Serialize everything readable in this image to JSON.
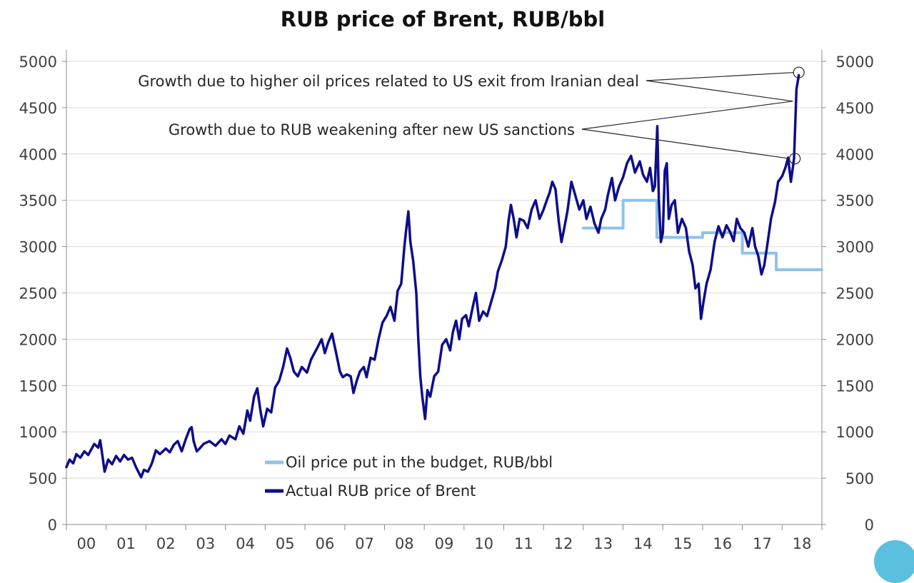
{
  "chart_data": {
    "type": "line",
    "title": "RUB price of Brent, RUB/bbl",
    "xlabel": "",
    "ylabel": "",
    "ylim": [
      0,
      5000
    ],
    "y_ticks": [
      0,
      500,
      1000,
      1500,
      2000,
      2500,
      3000,
      3500,
      4000,
      4500,
      5000
    ],
    "x_ticks": [
      "00",
      "01",
      "02",
      "03",
      "04",
      "05",
      "06",
      "07",
      "08",
      "09",
      "10",
      "11",
      "12",
      "13",
      "14",
      "15",
      "16",
      "17",
      "18"
    ],
    "grid": "horizontal",
    "legend_position": "bottom-center",
    "series": [
      {
        "name": "Oil price put in the budget, RUB/bbl",
        "color": "#8ec2ea",
        "step": true,
        "points": [
          [
            2013.0,
            3200
          ],
          [
            2014.0,
            3200
          ],
          [
            2014.0,
            3500
          ],
          [
            2014.85,
            3500
          ],
          [
            2014.85,
            3100
          ],
          [
            2016.0,
            3100
          ],
          [
            2016.0,
            3150
          ],
          [
            2017.0,
            3150
          ],
          [
            2017.0,
            2930
          ],
          [
            2017.85,
            2930
          ],
          [
            2017.85,
            2750
          ],
          [
            2019.0,
            2750
          ]
        ]
      },
      {
        "name": "Actual RUB price of Brent",
        "color": "#0d0d8c",
        "points": [
          [
            2000.0,
            620
          ],
          [
            2000.08,
            700
          ],
          [
            2000.17,
            660
          ],
          [
            2000.25,
            760
          ],
          [
            2000.35,
            720
          ],
          [
            2000.45,
            790
          ],
          [
            2000.55,
            750
          ],
          [
            2000.7,
            870
          ],
          [
            2000.8,
            830
          ],
          [
            2000.85,
            910
          ],
          [
            2000.92,
            700
          ],
          [
            2000.96,
            570
          ],
          [
            2001.05,
            700
          ],
          [
            2001.15,
            650
          ],
          [
            2001.25,
            740
          ],
          [
            2001.35,
            680
          ],
          [
            2001.45,
            750
          ],
          [
            2001.55,
            700
          ],
          [
            2001.65,
            720
          ],
          [
            2001.75,
            620
          ],
          [
            2001.82,
            560
          ],
          [
            2001.88,
            510
          ],
          [
            2001.95,
            590
          ],
          [
            2002.05,
            570
          ],
          [
            2002.15,
            660
          ],
          [
            2002.25,
            800
          ],
          [
            2002.35,
            760
          ],
          [
            2002.5,
            820
          ],
          [
            2002.6,
            780
          ],
          [
            2002.7,
            860
          ],
          [
            2002.8,
            900
          ],
          [
            2002.9,
            790
          ],
          [
            2003.0,
            920
          ],
          [
            2003.1,
            1030
          ],
          [
            2003.15,
            1050
          ],
          [
            2003.2,
            900
          ],
          [
            2003.28,
            790
          ],
          [
            2003.35,
            820
          ],
          [
            2003.45,
            870
          ],
          [
            2003.6,
            900
          ],
          [
            2003.75,
            850
          ],
          [
            2003.9,
            920
          ],
          [
            2004.0,
            870
          ],
          [
            2004.1,
            960
          ],
          [
            2004.25,
            920
          ],
          [
            2004.35,
            1060
          ],
          [
            2004.45,
            980
          ],
          [
            2004.55,
            1230
          ],
          [
            2004.62,
            1120
          ],
          [
            2004.72,
            1380
          ],
          [
            2004.8,
            1470
          ],
          [
            2004.88,
            1230
          ],
          [
            2004.95,
            1060
          ],
          [
            2005.05,
            1250
          ],
          [
            2005.15,
            1210
          ],
          [
            2005.25,
            1480
          ],
          [
            2005.35,
            1550
          ],
          [
            2005.45,
            1700
          ],
          [
            2005.55,
            1900
          ],
          [
            2005.63,
            1800
          ],
          [
            2005.72,
            1650
          ],
          [
            2005.82,
            1600
          ],
          [
            2005.92,
            1700
          ],
          [
            2006.05,
            1640
          ],
          [
            2006.15,
            1780
          ],
          [
            2006.3,
            1900
          ],
          [
            2006.42,
            2000
          ],
          [
            2006.5,
            1850
          ],
          [
            2006.58,
            1960
          ],
          [
            2006.68,
            2060
          ],
          [
            2006.78,
            1860
          ],
          [
            2006.88,
            1650
          ],
          [
            2006.95,
            1590
          ],
          [
            2007.05,
            1620
          ],
          [
            2007.15,
            1600
          ],
          [
            2007.22,
            1420
          ],
          [
            2007.3,
            1550
          ],
          [
            2007.38,
            1650
          ],
          [
            2007.48,
            1700
          ],
          [
            2007.55,
            1590
          ],
          [
            2007.65,
            1800
          ],
          [
            2007.75,
            1780
          ],
          [
            2007.85,
            2000
          ],
          [
            2007.95,
            2180
          ],
          [
            2008.05,
            2250
          ],
          [
            2008.15,
            2350
          ],
          [
            2008.25,
            2200
          ],
          [
            2008.33,
            2520
          ],
          [
            2008.42,
            2600
          ],
          [
            2008.5,
            3000
          ],
          [
            2008.55,
            3200
          ],
          [
            2008.6,
            3380
          ],
          [
            2008.65,
            3050
          ],
          [
            2008.72,
            2850
          ],
          [
            2008.8,
            2500
          ],
          [
            2008.85,
            2000
          ],
          [
            2008.9,
            1600
          ],
          [
            2008.95,
            1380
          ],
          [
            2009.02,
            1140
          ],
          [
            2009.08,
            1450
          ],
          [
            2009.15,
            1380
          ],
          [
            2009.25,
            1600
          ],
          [
            2009.35,
            1650
          ],
          [
            2009.45,
            1940
          ],
          [
            2009.55,
            2000
          ],
          [
            2009.65,
            1880
          ],
          [
            2009.72,
            2080
          ],
          [
            2009.8,
            2200
          ],
          [
            2009.88,
            2000
          ],
          [
            2009.95,
            2220
          ],
          [
            2010.05,
            2260
          ],
          [
            2010.12,
            2140
          ],
          [
            2010.22,
            2350
          ],
          [
            2010.3,
            2500
          ],
          [
            2010.38,
            2200
          ],
          [
            2010.48,
            2300
          ],
          [
            2010.58,
            2250
          ],
          [
            2010.68,
            2400
          ],
          [
            2010.78,
            2550
          ],
          [
            2010.85,
            2730
          ],
          [
            2010.95,
            2850
          ],
          [
            2011.05,
            3000
          ],
          [
            2011.12,
            3280
          ],
          [
            2011.18,
            3450
          ],
          [
            2011.25,
            3300
          ],
          [
            2011.32,
            3100
          ],
          [
            2011.4,
            3300
          ],
          [
            2011.5,
            3280
          ],
          [
            2011.6,
            3200
          ],
          [
            2011.7,
            3400
          ],
          [
            2011.8,
            3500
          ],
          [
            2011.9,
            3300
          ],
          [
            2012.0,
            3400
          ],
          [
            2012.08,
            3500
          ],
          [
            2012.15,
            3580
          ],
          [
            2012.22,
            3700
          ],
          [
            2012.3,
            3620
          ],
          [
            2012.38,
            3280
          ],
          [
            2012.45,
            3050
          ],
          [
            2012.52,
            3200
          ],
          [
            2012.6,
            3380
          ],
          [
            2012.7,
            3700
          ],
          [
            2012.8,
            3550
          ],
          [
            2012.9,
            3400
          ],
          [
            2013.0,
            3500
          ],
          [
            2013.08,
            3300
          ],
          [
            2013.18,
            3430
          ],
          [
            2013.28,
            3250
          ],
          [
            2013.38,
            3150
          ],
          [
            2013.45,
            3300
          ],
          [
            2013.55,
            3400
          ],
          [
            2013.62,
            3560
          ],
          [
            2013.72,
            3740
          ],
          [
            2013.8,
            3500
          ],
          [
            2013.9,
            3650
          ],
          [
            2014.0,
            3750
          ],
          [
            2014.1,
            3900
          ],
          [
            2014.2,
            3980
          ],
          [
            2014.3,
            3800
          ],
          [
            2014.42,
            3920
          ],
          [
            2014.5,
            3780
          ],
          [
            2014.6,
            3700
          ],
          [
            2014.68,
            3850
          ],
          [
            2014.75,
            3600
          ],
          [
            2014.8,
            3650
          ],
          [
            2014.86,
            4300
          ],
          [
            2014.9,
            3500
          ],
          [
            2014.95,
            3050
          ],
          [
            2015.0,
            3150
          ],
          [
            2015.05,
            3820
          ],
          [
            2015.1,
            3900
          ],
          [
            2015.15,
            3300
          ],
          [
            2015.22,
            3450
          ],
          [
            2015.3,
            3500
          ],
          [
            2015.38,
            3150
          ],
          [
            2015.48,
            3300
          ],
          [
            2015.58,
            3200
          ],
          [
            2015.66,
            2950
          ],
          [
            2015.75,
            2800
          ],
          [
            2015.82,
            2550
          ],
          [
            2015.9,
            2600
          ],
          [
            2015.96,
            2220
          ],
          [
            2016.02,
            2400
          ],
          [
            2016.1,
            2600
          ],
          [
            2016.2,
            2750
          ],
          [
            2016.3,
            3050
          ],
          [
            2016.4,
            3220
          ],
          [
            2016.5,
            3100
          ],
          [
            2016.6,
            3230
          ],
          [
            2016.7,
            3150
          ],
          [
            2016.78,
            3060
          ],
          [
            2016.86,
            3300
          ],
          [
            2016.95,
            3200
          ],
          [
            2017.05,
            3150
          ],
          [
            2017.15,
            3000
          ],
          [
            2017.25,
            3200
          ],
          [
            2017.32,
            3000
          ],
          [
            2017.4,
            2900
          ],
          [
            2017.48,
            2700
          ],
          [
            2017.55,
            2800
          ],
          [
            2017.62,
            3000
          ],
          [
            2017.72,
            3300
          ],
          [
            2017.82,
            3480
          ],
          [
            2017.9,
            3700
          ],
          [
            2018.0,
            3760
          ],
          [
            2018.08,
            3850
          ],
          [
            2018.15,
            3960
          ],
          [
            2018.22,
            3700
          ],
          [
            2018.3,
            3950
          ],
          [
            2018.36,
            4700
          ],
          [
            2018.42,
            4850
          ]
        ]
      }
    ],
    "annotations": [
      {
        "text": "Growth due to higher oil prices related to US exit from Iranian deal",
        "target": [
          2018.42,
          4880
        ]
      },
      {
        "text": "Growth due to RUB weakening after new US sanctions",
        "target": [
          2018.32,
          3950
        ]
      }
    ]
  }
}
